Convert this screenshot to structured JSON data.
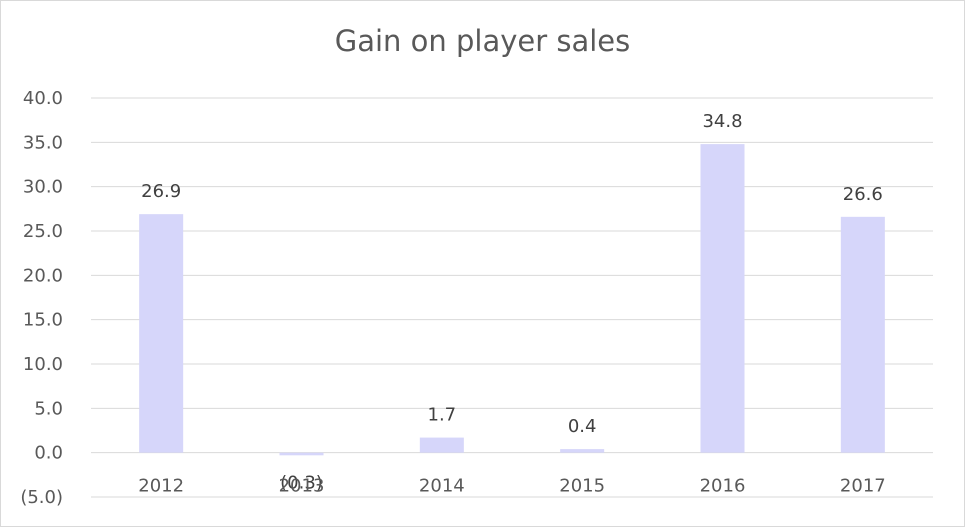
{
  "chart_data": {
    "type": "bar",
    "title": "Gain on player sales",
    "categories": [
      "2012",
      "2013",
      "2014",
      "2015",
      "2016",
      "2017"
    ],
    "values": [
      26.9,
      -0.3,
      1.7,
      0.4,
      34.8,
      26.6
    ],
    "data_labels": [
      "26.9",
      "(0.3)",
      "1.7",
      "0.4",
      "34.8",
      "26.6"
    ],
    "ylim": [
      -5,
      40
    ],
    "yticks": [
      -5,
      0,
      5,
      10,
      15,
      20,
      25,
      30,
      35,
      40
    ],
    "ytick_labels": [
      "(5.0)",
      "0.0",
      "5.0",
      "10.0",
      "15.0",
      "20.0",
      "25.0",
      "30.0",
      "35.0",
      "40.0"
    ],
    "grid": true,
    "legend": "none",
    "colors": {
      "bar": "#d6d6fa",
      "grid": "#d9d9d9",
      "text": "#595959"
    }
  }
}
